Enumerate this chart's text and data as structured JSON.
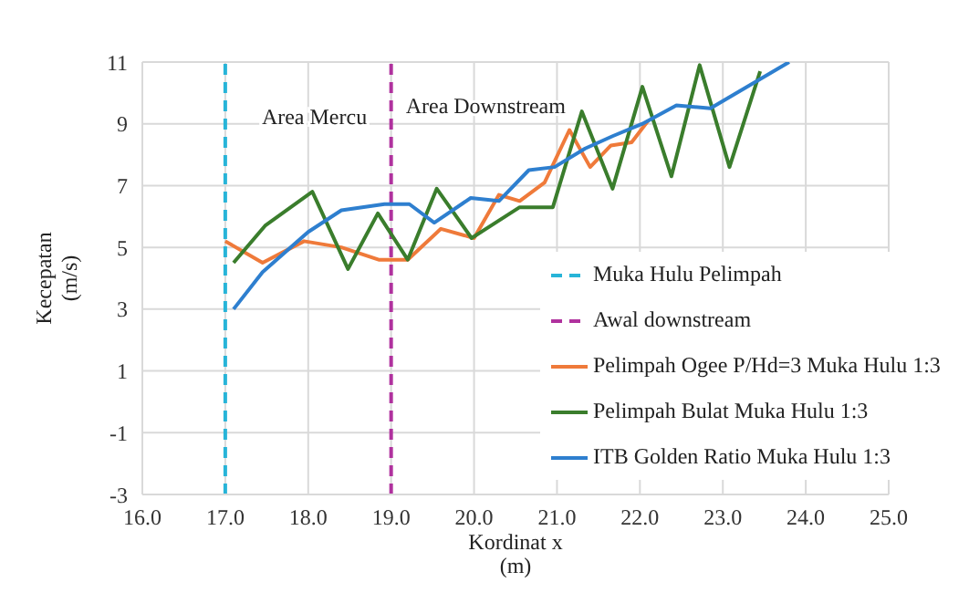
{
  "chart_data": {
    "type": "line",
    "xlabel": "Kordinat x (m)",
    "ylabel": "Kecepatan (m/s)",
    "xlim": [
      16,
      25
    ],
    "xticks": [
      {
        "value": 16,
        "label": "16.0"
      },
      {
        "value": 17,
        "label": "17.0"
      },
      {
        "value": 18,
        "label": "18.0"
      },
      {
        "value": 19,
        "label": "19.0"
      },
      {
        "value": 20,
        "label": "20.0"
      },
      {
        "value": 21,
        "label": "21.0"
      },
      {
        "value": 22,
        "label": "22.0"
      },
      {
        "value": 23,
        "label": "23.0"
      },
      {
        "value": 24,
        "label": "24.0"
      },
      {
        "value": 25,
        "label": "25.0"
      }
    ],
    "ylim": [
      -3,
      11
    ],
    "yticks": [
      -3,
      -1,
      1,
      3,
      5,
      7,
      9,
      11
    ],
    "grid": true,
    "legend": "bottom right",
    "marker": "none",
    "annotations": [
      "Area Mercu",
      "Area Downstream"
    ],
    "series": [
      {
        "name": "Muka Hulu Pelimpah",
        "color": "#27b4d8",
        "line_style": "dashed",
        "x": [
          17,
          17
        ],
        "values": [
          -3,
          11
        ]
      },
      {
        "name": "Awal downstream",
        "color": "#b0329e",
        "line_style": "dashed",
        "x": [
          19,
          19
        ],
        "values": [
          -3,
          11
        ]
      },
      {
        "name": "Pelimpah Ogee P/Hd=3 Muka Hulu 1:3",
        "color": "#ef7a3a",
        "line_style": "solid",
        "x": [
          17.0,
          17.45,
          17.95,
          18.4,
          18.85,
          19.2,
          19.6,
          20.0,
          20.3,
          20.55,
          20.85,
          21.15,
          21.4,
          21.65,
          21.9,
          22.1
        ],
        "values": [
          5.2,
          4.5,
          5.2,
          5.0,
          4.6,
          4.6,
          5.6,
          5.3,
          6.7,
          6.5,
          7.1,
          8.8,
          7.6,
          8.3,
          8.4,
          9.1
        ]
      },
      {
        "name": "Pelimpah Bulat Muka Hulu 1:3",
        "color": "#3a7d2c",
        "line_style": "solid",
        "x": [
          17.1,
          17.48,
          18.05,
          18.48,
          18.84,
          19.2,
          19.55,
          19.97,
          20.55,
          20.95,
          21.3,
          21.67,
          22.03,
          22.38,
          22.72,
          23.08,
          23.45
        ],
        "values": [
          4.5,
          5.7,
          6.8,
          4.3,
          6.1,
          4.6,
          6.9,
          5.3,
          6.3,
          6.3,
          9.4,
          6.9,
          10.2,
          7.3,
          10.9,
          7.6,
          10.7
        ]
      },
      {
        "name": "ITB Golden Ratio Muka Hulu 1:3",
        "color": "#2e7fcf",
        "line_style": "solid",
        "x": [
          17.1,
          17.45,
          18.0,
          18.4,
          18.92,
          19.22,
          19.52,
          19.96,
          20.3,
          20.66,
          20.97,
          21.34,
          21.67,
          22.03,
          22.44,
          22.85,
          23.8
        ],
        "values": [
          3.0,
          4.2,
          5.5,
          6.2,
          6.4,
          6.4,
          5.8,
          6.6,
          6.5,
          7.5,
          7.6,
          8.2,
          8.6,
          9.0,
          9.6,
          9.5,
          11.0
        ]
      }
    ]
  }
}
